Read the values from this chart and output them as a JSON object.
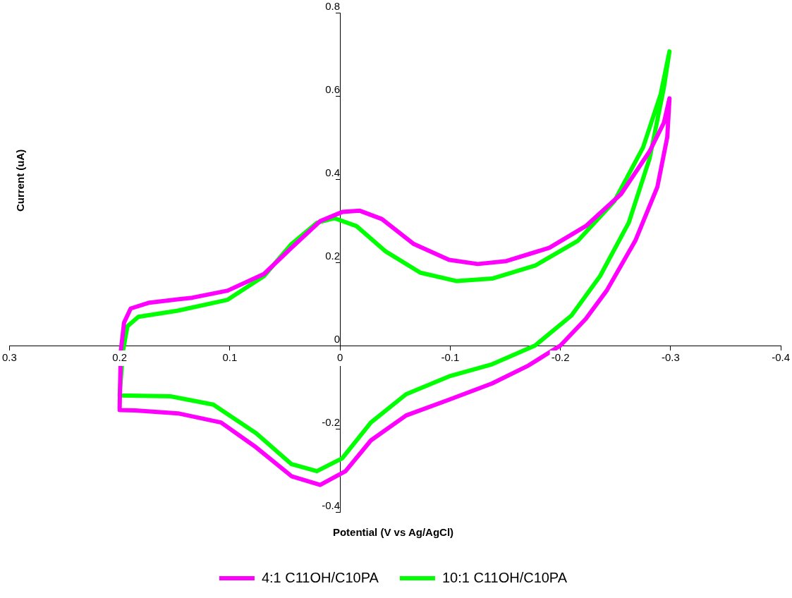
{
  "chart_data": {
    "type": "line",
    "xlabel": "Potential (V vs Ag/AgCl)",
    "ylabel": "Current (uA)",
    "xlim": [
      0.3,
      -0.4
    ],
    "xticks": [
      0.3,
      0.2,
      0.1,
      0,
      -0.1,
      -0.2,
      -0.3,
      -0.4
    ],
    "ylim": [
      -0.4,
      0.8
    ],
    "yticks": [
      -0.4,
      -0.2,
      0,
      0.2,
      0.4,
      0.6,
      0.8
    ],
    "grid": false,
    "legend": "bottom",
    "marker": "none",
    "line_style": "solid",
    "series": [
      {
        "name": "4:1 C11OH/C10PA",
        "color": "#ff00ff",
        "x": [
          0.2,
          0.199,
          0.196,
          0.19,
          0.173,
          0.134,
          0.102,
          0.069,
          0.044,
          0.018,
          -0.002,
          -0.018,
          -0.038,
          -0.067,
          -0.099,
          -0.125,
          -0.151,
          -0.19,
          -0.223,
          -0.255,
          -0.281,
          -0.294,
          -0.299,
          -0.297,
          -0.288,
          -0.268,
          -0.242,
          -0.223,
          -0.2,
          -0.171,
          -0.138,
          -0.099,
          -0.06,
          -0.028,
          -0.005,
          0.018,
          0.044,
          0.076,
          0.108,
          0.147,
          0.186,
          0.2
        ],
        "values": [
          -0.151,
          -0.014,
          0.055,
          0.089,
          0.103,
          0.115,
          0.132,
          0.172,
          0.235,
          0.299,
          0.321,
          0.324,
          0.304,
          0.244,
          0.206,
          0.196,
          0.203,
          0.235,
          0.287,
          0.364,
          0.467,
          0.536,
          0.594,
          0.501,
          0.381,
          0.252,
          0.132,
          0.064,
          0,
          -0.048,
          -0.091,
          -0.13,
          -0.168,
          -0.228,
          -0.302,
          -0.335,
          -0.314,
          -0.245,
          -0.185,
          -0.163,
          -0.156,
          -0.155
        ]
      },
      {
        "name": "10:1 C11OH/C10PA",
        "color": "#00ff00",
        "x": [
          0.2,
          0.197,
          0.193,
          0.183,
          0.147,
          0.102,
          0.069,
          0.044,
          0.021,
          0.005,
          -0.015,
          -0.041,
          -0.073,
          -0.106,
          -0.138,
          -0.177,
          -0.216,
          -0.249,
          -0.275,
          -0.291,
          -0.299,
          -0.294,
          -0.281,
          -0.262,
          -0.236,
          -0.21,
          -0.177,
          -0.138,
          -0.099,
          -0.06,
          -0.028,
          -0.002,
          0.021,
          0.044,
          0.076,
          0.115,
          0.154,
          0.2
        ],
        "values": [
          -0.117,
          -0.014,
          0.046,
          0.069,
          0.084,
          0.11,
          0.167,
          0.244,
          0.295,
          0.306,
          0.287,
          0.227,
          0.175,
          0.155,
          0.161,
          0.192,
          0.252,
          0.347,
          0.476,
          0.604,
          0.707,
          0.621,
          0.45,
          0.295,
          0.167,
          0.072,
          0,
          -0.045,
          -0.074,
          -0.117,
          -0.185,
          -0.271,
          -0.302,
          -0.285,
          -0.211,
          -0.142,
          -0.122,
          -0.12
        ]
      }
    ]
  }
}
